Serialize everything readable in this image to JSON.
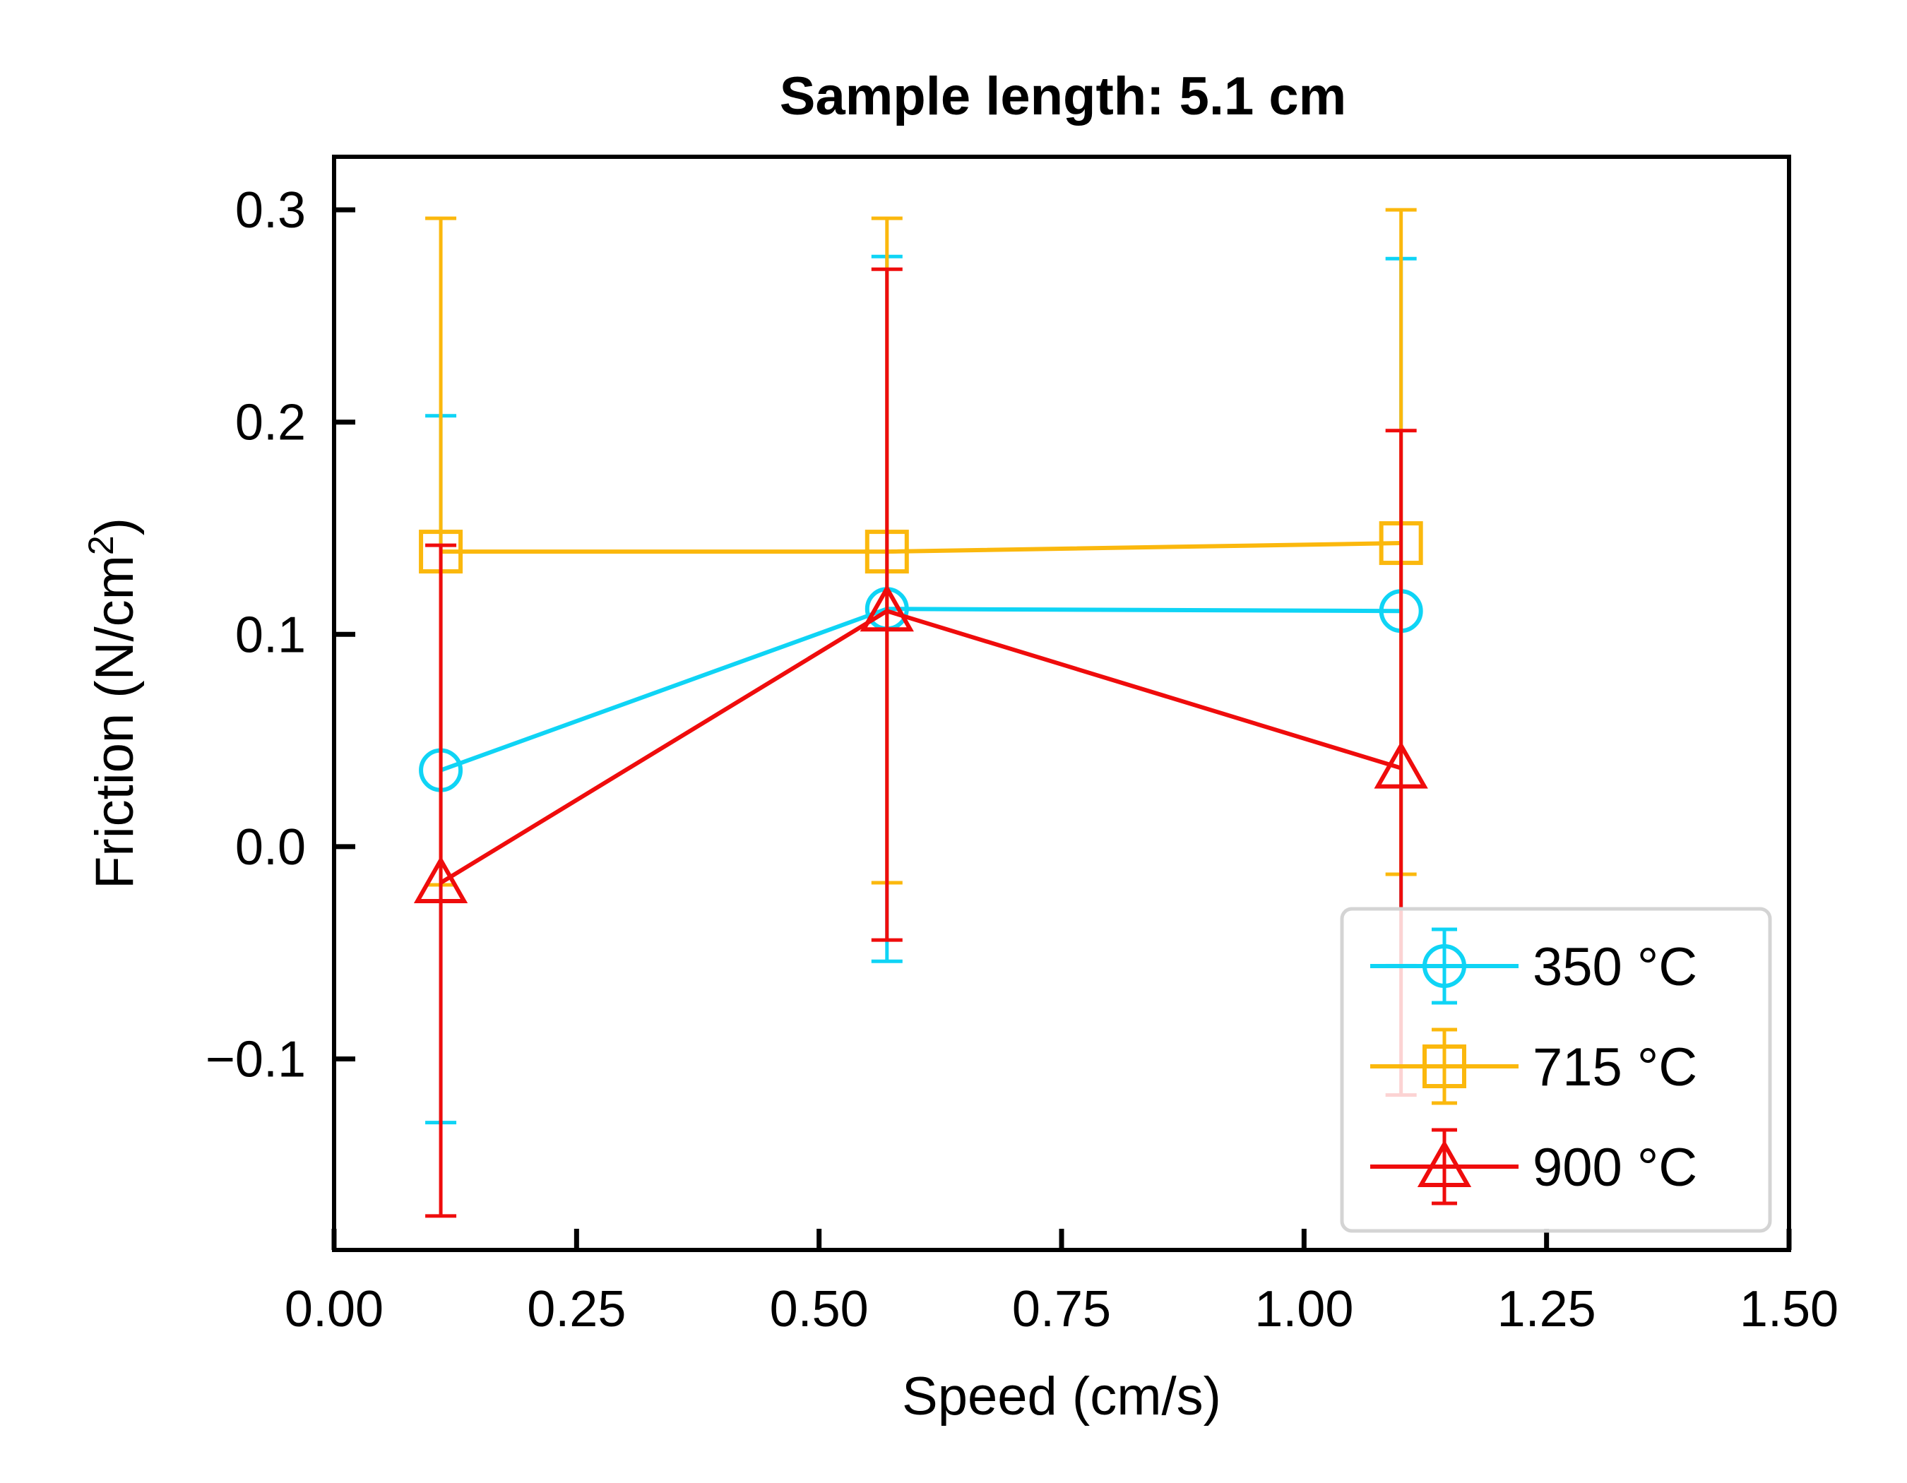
{
  "chart_data": {
    "type": "line",
    "title": "Sample length: 5.1 cm",
    "xlabel": "Speed (cm/s)",
    "ylabel_main": "Friction (N/cm",
    "ylabel_sup": "2",
    "ylabel_end": ")",
    "xlim": [
      0.0,
      1.5
    ],
    "ylim": [
      -0.19,
      0.325
    ],
    "xticks": [
      0.0,
      0.25,
      0.5,
      0.75,
      1.0,
      1.25,
      1.5
    ],
    "xtick_labels": [
      "0.00",
      "0.25",
      "0.50",
      "0.75",
      "1.00",
      "1.25",
      "1.50"
    ],
    "yticks": [
      -0.1,
      0.0,
      0.1,
      0.2,
      0.3
    ],
    "ytick_labels": [
      "−0.1",
      "0.0",
      "0.1",
      "0.2",
      "0.3"
    ],
    "grid": false,
    "legend_position": "lower-right",
    "series": [
      {
        "name": "350 °C",
        "color": "#0fd4f5",
        "marker": "circle",
        "x": [
          0.11,
          0.57,
          1.1
        ],
        "y": [
          0.036,
          0.112,
          0.111
        ],
        "yerr_low": [
          -0.13,
          -0.054,
          -0.056
        ],
        "yerr_high": [
          0.203,
          0.278,
          0.277
        ]
      },
      {
        "name": "715 °C",
        "color": "#fbb80d",
        "marker": "square",
        "x": [
          0.11,
          0.57,
          1.1
        ],
        "y": [
          0.139,
          0.139,
          0.143
        ],
        "yerr_low": [
          -0.018,
          -0.017,
          -0.013
        ],
        "yerr_high": [
          0.296,
          0.296,
          0.3
        ]
      },
      {
        "name": "900 °C",
        "color": "#ef0c0c",
        "marker": "triangle",
        "x": [
          0.11,
          0.57,
          1.1
        ],
        "y": [
          -0.017,
          0.111,
          0.037
        ],
        "yerr_low": [
          -0.174,
          -0.044,
          -0.117
        ],
        "yerr_high": [
          0.142,
          0.272,
          0.196
        ]
      }
    ]
  }
}
